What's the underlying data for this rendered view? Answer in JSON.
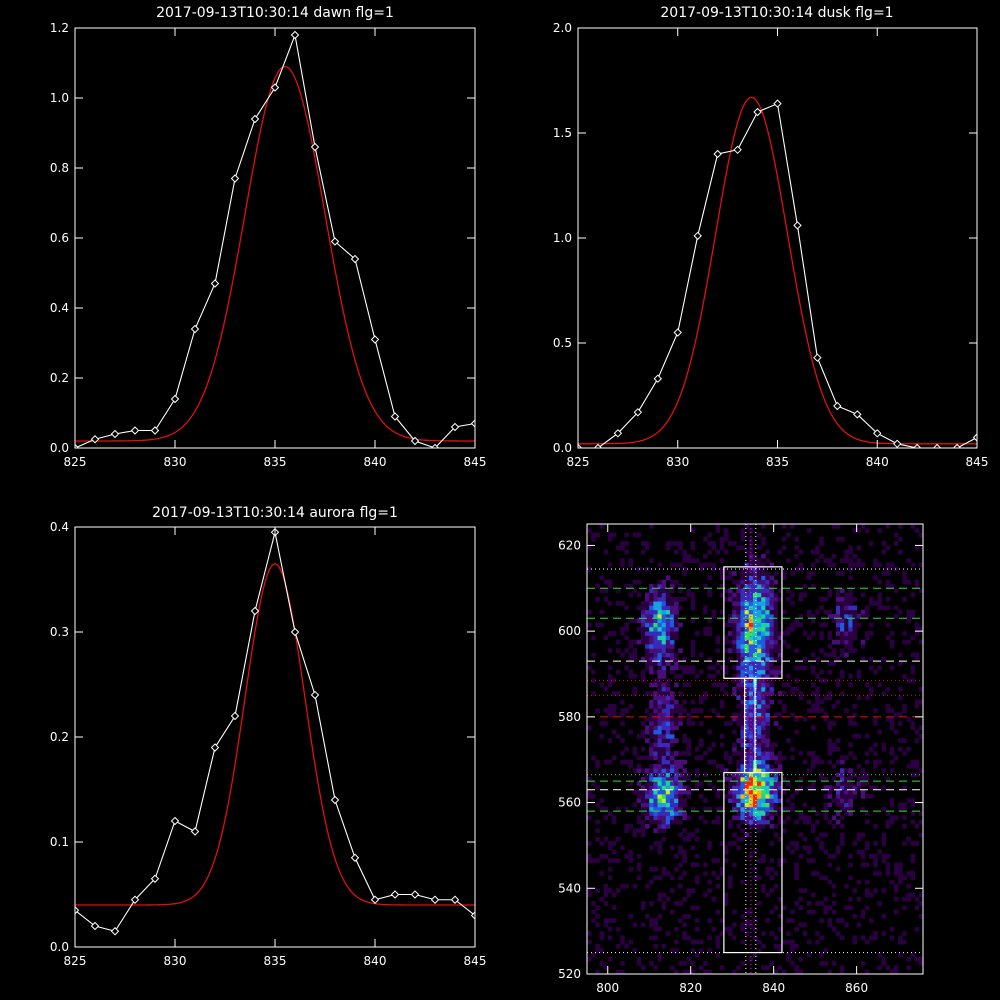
{
  "chart_data": [
    {
      "type": "line",
      "title": "2017-09-13T10:30:14 dawn flg=1",
      "xlim": [
        825,
        845
      ],
      "ylim": [
        0,
        1.2
      ],
      "xticks": [
        825,
        830,
        835,
        840,
        845
      ],
      "yticks": [
        0.0,
        0.2,
        0.4,
        0.6,
        0.8,
        1.0,
        1.2
      ],
      "xtick_labels": [
        "825",
        "830",
        "835",
        "840",
        "845"
      ],
      "ytick_labels": [
        "0.0",
        "0.2",
        "0.4",
        "0.6",
        "0.8",
        "1.0",
        "1.2"
      ],
      "series": [
        {
          "style": "data",
          "color": "#ffffff",
          "marker": "diamond",
          "x": [
            825,
            826,
            827,
            828,
            829,
            830,
            831,
            832,
            833,
            834,
            835,
            836,
            837,
            838,
            839,
            840,
            841,
            842,
            843,
            844,
            845
          ],
          "y": [
            0.0,
            0.025,
            0.04,
            0.05,
            0.05,
            0.14,
            0.34,
            0.47,
            0.77,
            0.94,
            1.03,
            1.18,
            0.86,
            0.59,
            0.54,
            0.31,
            0.09,
            0.02,
            0.0,
            0.06,
            0.07
          ]
        },
        {
          "style": "fit",
          "color": "#e01010",
          "gaussian": {
            "amplitude": 1.07,
            "center": 835.5,
            "sigma": 2.0,
            "offset": 0.02
          }
        }
      ]
    },
    {
      "type": "line",
      "title": "2017-09-13T10:30:14 dusk flg=1",
      "xlim": [
        825,
        845
      ],
      "ylim": [
        0,
        2.0
      ],
      "xticks": [
        825,
        830,
        835,
        840,
        845
      ],
      "yticks": [
        0.0,
        0.5,
        1.0,
        1.5,
        2.0
      ],
      "xtick_labels": [
        "825",
        "830",
        "835",
        "840",
        "845"
      ],
      "ytick_labels": [
        "0.0",
        "0.5",
        "1.0",
        "1.5",
        "2.0"
      ],
      "series": [
        {
          "style": "data",
          "color": "#ffffff",
          "marker": "diamond",
          "x": [
            825,
            826,
            827,
            828,
            829,
            830,
            831,
            832,
            833,
            834,
            835,
            836,
            837,
            838,
            839,
            840,
            841,
            842,
            843,
            844,
            845
          ],
          "y": [
            0.0,
            0.0,
            0.07,
            0.17,
            0.33,
            0.55,
            1.01,
            1.4,
            1.42,
            1.6,
            1.64,
            1.06,
            0.43,
            0.2,
            0.16,
            0.07,
            0.02,
            0.0,
            0.0,
            0.0,
            0.05
          ]
        },
        {
          "style": "fit",
          "color": "#e01010",
          "gaussian": {
            "amplitude": 1.65,
            "center": 833.7,
            "sigma": 1.8,
            "offset": 0.02
          }
        }
      ]
    },
    {
      "type": "line",
      "title": "2017-09-13T10:30:14 aurora flg=1",
      "xlim": [
        825,
        845
      ],
      "ylim": [
        0,
        0.4
      ],
      "xticks": [
        825,
        830,
        835,
        840,
        845
      ],
      "yticks": [
        0.0,
        0.1,
        0.2,
        0.3,
        0.4
      ],
      "xtick_labels": [
        "825",
        "830",
        "835",
        "840",
        "845"
      ],
      "ytick_labels": [
        "0.0",
        "0.1",
        "0.2",
        "0.3",
        "0.4"
      ],
      "series": [
        {
          "style": "data",
          "color": "#ffffff",
          "marker": "diamond",
          "x": [
            825,
            826,
            827,
            828,
            829,
            830,
            831,
            832,
            833,
            834,
            835,
            836,
            837,
            838,
            839,
            840,
            841,
            842,
            843,
            844,
            845
          ],
          "y": [
            0.035,
            0.02,
            0.015,
            0.045,
            0.065,
            0.12,
            0.11,
            0.19,
            0.22,
            0.32,
            0.395,
            0.3,
            0.24,
            0.14,
            0.085,
            0.045,
            0.05,
            0.05,
            0.045,
            0.045,
            0.03
          ]
        },
        {
          "style": "fit",
          "color": "#e01010",
          "gaussian": {
            "amplitude": 0.325,
            "center": 835.0,
            "sigma": 1.5,
            "offset": 0.04
          }
        }
      ]
    },
    {
      "type": "heatmap",
      "xlim": [
        795,
        876
      ],
      "ylim": [
        520,
        625
      ],
      "xticks": [
        800,
        820,
        840,
        860
      ],
      "yticks": [
        520,
        540,
        560,
        580,
        600,
        620
      ],
      "xtick_labels": [
        "800",
        "820",
        "840",
        "860"
      ],
      "ytick_labels": [
        "520",
        "540",
        "560",
        "580",
        "600",
        "620"
      ],
      "colormap": [
        "#000000",
        "#2a0040",
        "#4a0e7a",
        "#3a2ab8",
        "#1f5be0",
        "#1aa0e0",
        "#18d0b0",
        "#30e060",
        "#c8e820",
        "#ffb000",
        "#ff2000"
      ],
      "blobs": [
        {
          "xc": 812,
          "yc": 601,
          "sx": 2.5,
          "sy": 6,
          "amp": 0.5
        },
        {
          "xc": 813,
          "yc": 561,
          "sx": 2.8,
          "sy": 4,
          "amp": 0.62
        },
        {
          "xc": 813,
          "yc": 578,
          "sx": 2.5,
          "sy": 6,
          "amp": 0.28
        },
        {
          "xc": 835,
          "yc": 601,
          "sx": 3.0,
          "sy": 8,
          "amp": 0.62
        },
        {
          "xc": 835,
          "yc": 580,
          "sx": 2.6,
          "sy": 9,
          "amp": 0.32
        },
        {
          "xc": 835,
          "yc": 562,
          "sx": 3.0,
          "sy": 4,
          "amp": 0.95
        },
        {
          "xc": 857,
          "yc": 602,
          "sx": 2.5,
          "sy": 6,
          "amp": 0.2
        },
        {
          "xc": 857,
          "yc": 562,
          "sx": 2.5,
          "sy": 5,
          "amp": 0.18
        }
      ],
      "boxes": [
        {
          "x0": 828,
          "x1": 842,
          "y0": 589,
          "y1": 615,
          "color": "#ffffff"
        },
        {
          "x0": 828,
          "x1": 842,
          "y0": 525,
          "y1": 567,
          "color": "#ffffff"
        },
        {
          "x0": 833,
          "x1": 835.5,
          "y0": 567,
          "y1": 589,
          "color": "#ffffff"
        }
      ],
      "hlines": [
        {
          "y": 614.5,
          "color": "#ffffff",
          "dash": "dot"
        },
        {
          "y": 610,
          "color": "#30e030",
          "dash": "dash"
        },
        {
          "y": 603,
          "color": "#30e030",
          "dash": "dash"
        },
        {
          "y": 593,
          "color": "#ffffff",
          "dash": "dash"
        },
        {
          "y": 588.5,
          "color": "#e01010",
          "dash": "dot"
        },
        {
          "y": 585,
          "color": "#e01010",
          "dash": "dot"
        },
        {
          "y": 580,
          "color": "#e01010",
          "dash": "dash"
        },
        {
          "y": 566.5,
          "color": "#30e030",
          "dash": "dot"
        },
        {
          "y": 565,
          "color": "#30e030",
          "dash": "dash"
        },
        {
          "y": 563,
          "color": "#ffffff",
          "dash": "dash"
        },
        {
          "y": 558,
          "color": "#30e030",
          "dash": "dash"
        },
        {
          "y": 525,
          "color": "#ffffff",
          "dash": "dot"
        }
      ],
      "vlines": [
        {
          "x": 833.3,
          "color": "#ffffff",
          "dash": "dot"
        },
        {
          "x": 834.5,
          "color": "#ff00ff",
          "dash": "dot"
        },
        {
          "x": 835.7,
          "color": "#ffffff",
          "dash": "dot"
        }
      ]
    }
  ]
}
